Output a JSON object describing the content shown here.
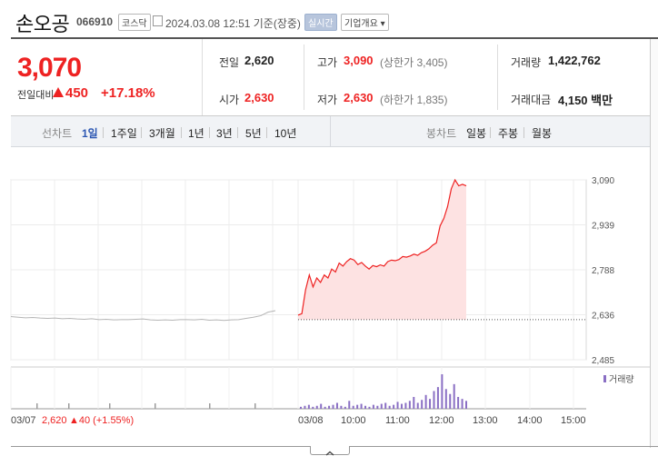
{
  "header": {
    "stock_name": "손오공",
    "stock_code": "066910",
    "market": "코스닥",
    "datetime": "2024.03.08 12:51 기준(장중)",
    "realtime_label": "실시간",
    "company_button": "기업개요 ▾"
  },
  "price": {
    "current": "3,070",
    "change_label": "전일대비",
    "change": "450",
    "change_pct": "+17.18%"
  },
  "quote": {
    "prev_label": "전일",
    "prev": "2,620",
    "high_label": "고가",
    "high": "3,090",
    "upper_limit": "(상한가 3,405)",
    "volume_label": "거래량",
    "volume": "1,422,762",
    "open_label": "시가",
    "open": "2,630",
    "low_label": "저가",
    "low": "2,630",
    "lower_limit": "(하한가 1,835)",
    "amount_label": "거래대금",
    "amount": "4,150 백만"
  },
  "periods": {
    "line_label": "선차트",
    "items": [
      "1일",
      "1주일",
      "3개월",
      "1년",
      "3년",
      "5년",
      "10년"
    ],
    "active": "1일",
    "candle_label": "봉차트",
    "candle_items": [
      "일봉",
      "주봉",
      "월봉"
    ]
  },
  "chart_data": {
    "type": "line",
    "ylim": [
      2485,
      3090
    ],
    "yticks": [
      "3,090",
      "2,939",
      "2,788",
      "2,636",
      "2,485"
    ],
    "xticks": [
      "03/07",
      "03/08",
      "10:00",
      "11:00",
      "12:00",
      "13:00",
      "14:00",
      "15:00"
    ],
    "prev_close": 2620,
    "prev_day_label": "2,620",
    "prev_day_change": "▲40 (+1.55%)",
    "volume_legend": "거래량",
    "prev_day_series": [
      2630,
      2628,
      2626,
      2627,
      2625,
      2624,
      2625,
      2623,
      2624,
      2622,
      2621,
      2623,
      2620,
      2621,
      2619,
      2620,
      2620,
      2621,
      2622,
      2619,
      2618,
      2619,
      2618,
      2620,
      2620,
      2619,
      2621,
      2618,
      2619,
      2617,
      2619,
      2620,
      2624,
      2628,
      2633,
      2645,
      2650
    ],
    "today_series": [
      2635,
      2640,
      2720,
      2770,
      2730,
      2760,
      2745,
      2770,
      2760,
      2790,
      2780,
      2810,
      2800,
      2815,
      2825,
      2820,
      2805,
      2812,
      2800,
      2790,
      2802,
      2798,
      2804,
      2800,
      2815,
      2820,
      2818,
      2822,
      2832,
      2830,
      2834,
      2840,
      2836,
      2845,
      2850,
      2858,
      2870,
      2878,
      2935,
      2960,
      3000,
      3060,
      3090,
      3070,
      3075,
      3070
    ],
    "volume_today": [
      2,
      3,
      4,
      2,
      3,
      5,
      2,
      3,
      4,
      6,
      3,
      2,
      8,
      3,
      4,
      5,
      3,
      2,
      4,
      3,
      5,
      6,
      3,
      4,
      7,
      5,
      6,
      8,
      12,
      6,
      9,
      14,
      10,
      18,
      22,
      35,
      20,
      15,
      25,
      12,
      10,
      8
    ]
  }
}
